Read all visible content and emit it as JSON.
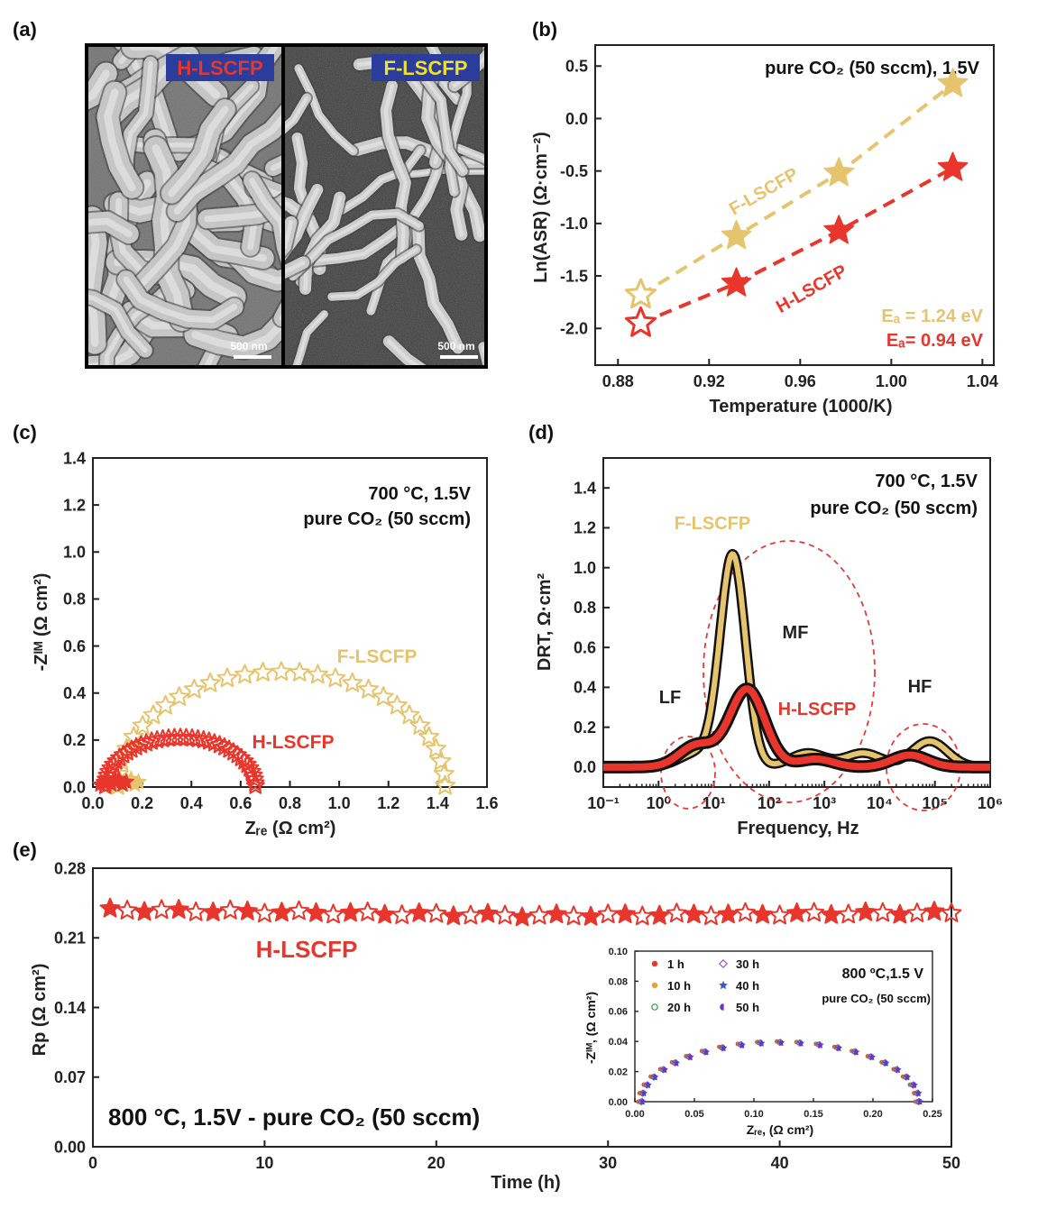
{
  "colors": {
    "f_lscfp": "#e6c46e",
    "h_lscfp": "#e8362c",
    "axis": "#222222",
    "dash_circle": "#e03c3c"
  },
  "panel_a": {
    "label": "(a)",
    "left_tag": "H-LSCFP",
    "right_tag": "F-LSCFP",
    "scale_left": "500 nm",
    "scale_right": "500 nm"
  },
  "chart_data": [
    {
      "id": "b",
      "panel_label": "(b)",
      "type": "scatter",
      "annotation": "pure CO₂ (50 sccm), 1.5V",
      "xlabel": "Temperature (1000/K)",
      "ylabel": "Ln(ASR) (Ω·cm⁻²)",
      "xlim": [
        0.87,
        1.045
      ],
      "ylim": [
        -2.35,
        0.7
      ],
      "xticks": [
        "0.88",
        "0.92",
        "0.96",
        "1.00",
        "1.04"
      ],
      "yticks": [
        "-2.0",
        "-1.5",
        "-1.0",
        "-0.5",
        "0.0",
        "0.5"
      ],
      "series": [
        {
          "name": "F-LSCFP",
          "label_text": "Eₐ = 1.24 eV",
          "x": [
            0.89,
            0.932,
            0.977,
            1.027
          ],
          "y": [
            -1.68,
            -1.12,
            -0.52,
            0.33
          ]
        },
        {
          "name": "H-LSCFP",
          "label_text": "Eₐ= 0.94 eV",
          "x": [
            0.89,
            0.932,
            0.977,
            1.027
          ],
          "y": [
            -1.95,
            -1.57,
            -1.07,
            -0.47
          ]
        }
      ]
    },
    {
      "id": "c",
      "panel_label": "(c)",
      "type": "scatter",
      "annotation_1": "700 °C, 1.5V",
      "annotation_2": "pure CO₂ (50 sccm)",
      "xlabel": "Zᵣₑ (Ω cm²)",
      "ylabel": "-Zᴵᴹ (Ω cm²)",
      "xlim": [
        0.0,
        1.6
      ],
      "ylim": [
        0.0,
        1.4
      ],
      "xticks": [
        "0.0",
        "0.2",
        "0.4",
        "0.6",
        "0.8",
        "1.0",
        "1.2",
        "1.4",
        "1.6"
      ],
      "yticks": [
        "0.0",
        "0.2",
        "0.4",
        "0.6",
        "0.8",
        "1.0",
        "1.2",
        "1.4"
      ],
      "series": [
        {
          "name": "F-LSCFP",
          "arc_start": 0.1,
          "arc_end": 1.43,
          "peak": 0.49
        },
        {
          "name": "H-LSCFP",
          "arc_start": 0.05,
          "arc_end": 0.66,
          "peak": 0.21
        }
      ]
    },
    {
      "id": "d",
      "panel_label": "(d)",
      "type": "line",
      "annotation_1": "700 °C, 1.5V",
      "annotation_2": "pure CO₂ (50 sccm)",
      "xlabel": "Frequency, Hz",
      "ylabel": "DRT, Ω·cm²",
      "x_scale": "log",
      "xlim": [
        0.1,
        1000000
      ],
      "ylim": [
        -0.1,
        1.55
      ],
      "xticks": [
        "10⁻¹",
        "10⁰",
        "10¹",
        "10²",
        "10³",
        "10⁴",
        "10⁵",
        "10⁶"
      ],
      "yticks": [
        "0.0",
        "0.2",
        "0.4",
        "0.6",
        "0.8",
        "1.0",
        "1.2",
        "1.4"
      ],
      "regions": [
        "LF",
        "MF",
        "HF"
      ],
      "series": [
        {
          "name": "F-LSCFP",
          "peaks": [
            {
              "f": 5,
              "h": 0.07
            },
            {
              "f": 22,
              "h": 1.06
            },
            {
              "f": 500,
              "h": 0.07
            },
            {
              "f": 5000,
              "h": 0.07
            },
            {
              "f": 80000,
              "h": 0.13
            }
          ]
        },
        {
          "name": "H-LSCFP",
          "peaks": [
            {
              "f": 5,
              "h": 0.11
            },
            {
              "f": 40,
              "h": 0.39
            },
            {
              "f": 700,
              "h": 0.04
            },
            {
              "f": 35000,
              "h": 0.06
            }
          ]
        }
      ]
    },
    {
      "id": "e",
      "panel_label": "(e)",
      "type": "scatter",
      "annotation": "800 °C, 1.5V - pure CO₂ (50 sccm)",
      "series_label": "H-LSCFP",
      "xlabel": "Time (h)",
      "ylabel": "Rp (Ω cm²)",
      "xlim": [
        0,
        50
      ],
      "ylim": [
        0.0,
        0.28
      ],
      "xticks": [
        "0",
        "10",
        "20",
        "30",
        "40",
        "50"
      ],
      "yticks": [
        "0.00",
        "0.07",
        "0.14",
        "0.21",
        "0.28"
      ],
      "series": [
        {
          "name": "H-LSCFP",
          "x_start": 1,
          "x_end": 50,
          "step": 1,
          "y_start": 0.238,
          "y_mid": 0.232,
          "y_end": 0.235
        }
      ]
    },
    {
      "id": "e_inset",
      "type": "scatter",
      "annotation_1": "800 ºC,1.5 V",
      "annotation_2": "pure CO₂ (50 sccm)",
      "xlabel": "Zᵣₑ, (Ω cm²)",
      "ylabel": "-Zᴵᴹ, (Ω cm²)",
      "xlim": [
        0.0,
        0.25
      ],
      "ylim": [
        0.0,
        0.1
      ],
      "xticks": [
        "0.00",
        "0.05",
        "0.10",
        "0.15",
        "0.20",
        "0.25"
      ],
      "yticks": [
        "0.00",
        "0.02",
        "0.04",
        "0.06",
        "0.08",
        "0.10"
      ],
      "series": [
        {
          "name": "1 h",
          "color": "#e8362c",
          "marker": "dot"
        },
        {
          "name": "10 h",
          "color": "#e8a030",
          "marker": "dot"
        },
        {
          "name": "20 h",
          "color": "#2f9a3a",
          "marker": "ring"
        },
        {
          "name": "30 h",
          "color": "#a050c8",
          "marker": "diamond"
        },
        {
          "name": "40 h",
          "color": "#3a55c8",
          "marker": "star"
        },
        {
          "name": "50 h",
          "color": "#7030c0",
          "marker": "half"
        }
      ],
      "arc": {
        "start": 0.005,
        "end": 0.238,
        "peak": 0.04
      }
    }
  ]
}
